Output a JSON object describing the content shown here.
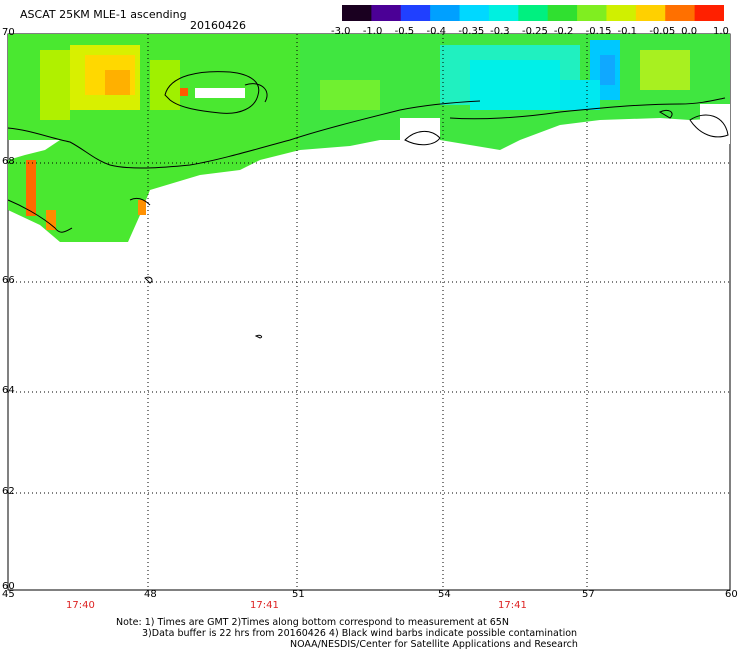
{
  "header": {
    "title": "ASCAT 25KM MLE-1 ascending",
    "date": "20160426"
  },
  "colorbar": {
    "ticks": [
      "-3.0",
      "-1.0",
      "-0.5",
      "-0.4",
      "-0.35",
      "-0.3",
      "-0.25",
      "-0.2",
      "-0.15",
      "-0.1",
      "-0.05",
      "0.0",
      "1.0"
    ],
    "colors": [
      "#1a0020",
      "#4b0096",
      "#2040ff",
      "#00a0ff",
      "#00d8ff",
      "#00f0e0",
      "#00f080",
      "#30e030",
      "#80ee20",
      "#d0f000",
      "#ffd000",
      "#ff7000",
      "#ff2000"
    ]
  },
  "axes": {
    "lat_labels": [
      "70",
      "68",
      "66",
      "64",
      "62",
      "60"
    ],
    "lon_labels": [
      "45",
      "48",
      "51",
      "54",
      "57",
      "60"
    ],
    "time_labels": [
      "17:40",
      "17:41",
      "17:41"
    ]
  },
  "notes": {
    "line1": "Note: 1) Times are GMT 2)Times along bottom correspond to measurement at 65N",
    "line2": "3)Data buffer is 22 hrs from 20160426 4) Black wind barbs indicate possible contamination",
    "line3": "NOAA/NESDIS/Center for Satellite Applications and Research"
  }
}
